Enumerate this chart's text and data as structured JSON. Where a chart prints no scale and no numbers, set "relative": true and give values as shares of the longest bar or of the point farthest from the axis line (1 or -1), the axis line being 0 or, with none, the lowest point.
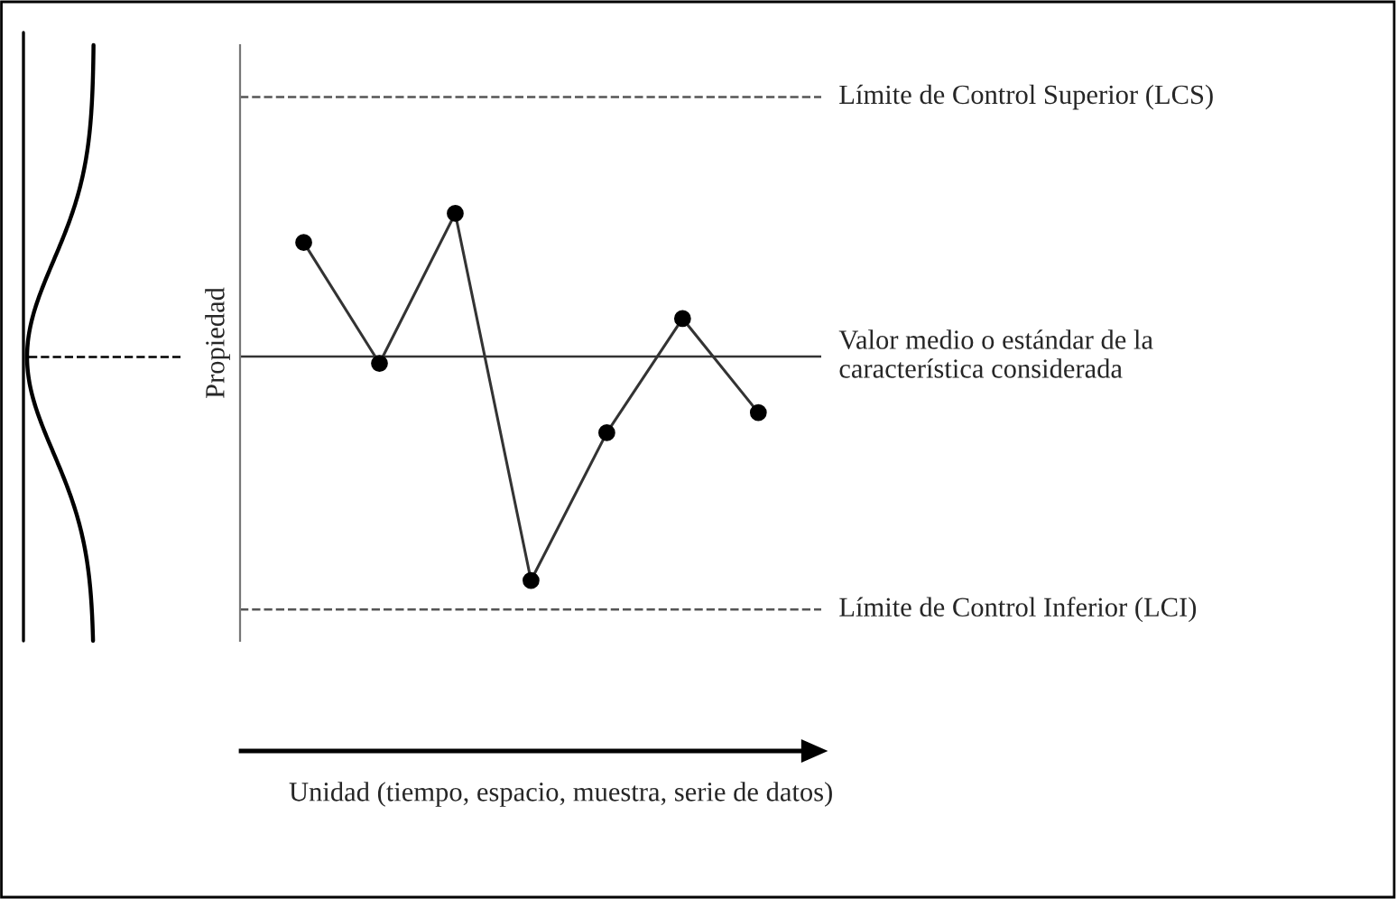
{
  "chart_data": {
    "type": "line",
    "relative": true,
    "annotations": [
      "Unidad (tiempo, espacio, muestra, serie de datos)"
    ],
    "ylabel": "Propiedad",
    "categories": [
      null,
      null,
      null,
      null,
      null,
      null,
      null
    ],
    "series": [
      {
        "color": "#333333",
        "values": [
          0.51,
          -0.03,
          0.64,
          -1,
          -0.34,
          0.17,
          -0.25
        ]
      }
    ],
    "ref_lines": [
      {
        "axis": "y",
        "value": 1.16,
        "label": "Límite de Control Superior (LCS)",
        "color": "#555555",
        "line_style": "dashed"
      },
      {
        "axis": "y",
        "value": 0,
        "label": "Valor medio o estándar de la\ncaracterística considerada",
        "color": "#333333",
        "line_style": "solid"
      },
      {
        "axis": "y",
        "value": -1.13,
        "label": "Límite de Control Inferior (LCI)",
        "color": "#555555",
        "line_style": "dashed"
      }
    ],
    "marker": "circle",
    "line_style": "solid",
    "grid": false,
    "legend": false
  }
}
